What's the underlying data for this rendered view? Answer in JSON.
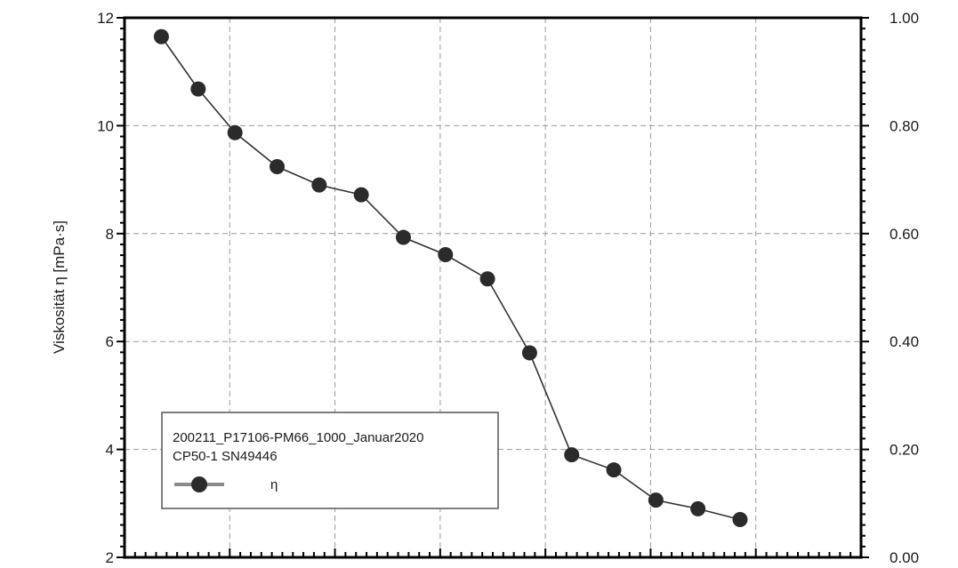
{
  "chart_data": {
    "type": "line",
    "ylabel": "Viskosität  η  [mPa·s]",
    "y_ticks": [
      "2",
      "4",
      "6",
      "8",
      "10",
      "12"
    ],
    "ylim": [
      2,
      12
    ],
    "y2_ticks": [
      "0.00",
      "0.20",
      "0.40",
      "0.60",
      "0.80",
      "1.00"
    ],
    "y2lim": [
      0,
      1
    ],
    "xlim": [
      0,
      7
    ],
    "grid": true,
    "legend_position": "lower-left",
    "legend": {
      "line1": "200211_P17106-PM66_1000_Januar2020",
      "line2": "CP50-1 SN49446"
    },
    "series": [
      {
        "name": "η",
        "color": "#333333",
        "marker_color": "#2b2b2b",
        "x": [
          0.35,
          0.7,
          1.05,
          1.45,
          1.85,
          2.25,
          2.65,
          3.05,
          3.45,
          3.85,
          4.25,
          4.65,
          5.05,
          5.45,
          5.85
        ],
        "y": [
          11.65,
          10.68,
          9.87,
          9.24,
          8.9,
          8.72,
          7.93,
          7.61,
          7.16,
          5.79,
          3.9,
          3.62,
          3.06,
          2.9,
          2.7
        ]
      }
    ]
  }
}
